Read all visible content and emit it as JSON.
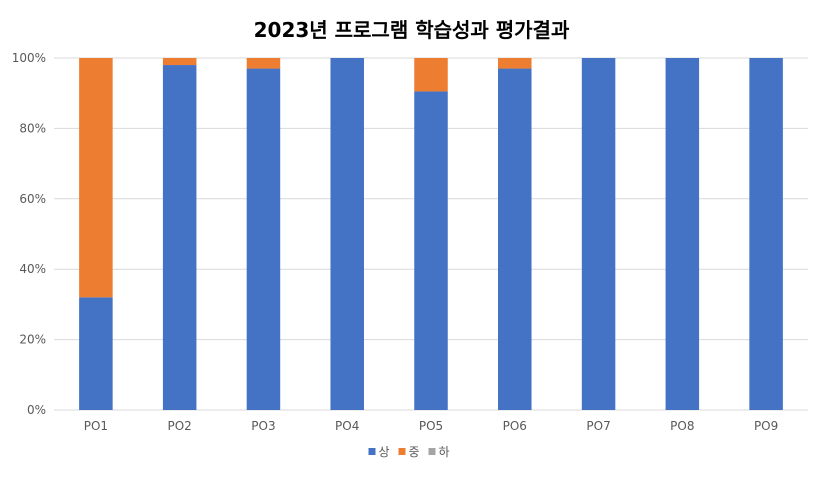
{
  "chart_data": {
    "type": "bar",
    "stacked": true,
    "title": "2023년 프로그램 학습성과 평가결과",
    "xlabel": "",
    "ylabel": "",
    "categories": [
      "PO1",
      "PO2",
      "PO3",
      "PO4",
      "PO5",
      "PO6",
      "PO7",
      "PO8",
      "PO9"
    ],
    "series": [
      {
        "name": "상",
        "color": "#4472C4",
        "values": [
          32,
          98,
          97,
          100,
          90.5,
          97,
          100,
          100,
          100
        ]
      },
      {
        "name": "중",
        "color": "#ED7D31",
        "values": [
          68,
          2,
          3,
          0,
          9.5,
          3,
          0,
          0,
          0
        ]
      },
      {
        "name": "하",
        "color": "#A5A5A5",
        "values": [
          0,
          0,
          0,
          0,
          0,
          0,
          0,
          0,
          0
        ]
      }
    ],
    "ylim": [
      0,
      100
    ],
    "yticks": [
      "0%",
      "20%",
      "40%",
      "60%",
      "80%",
      "100%"
    ],
    "grid": true,
    "legend_position": "bottom"
  }
}
